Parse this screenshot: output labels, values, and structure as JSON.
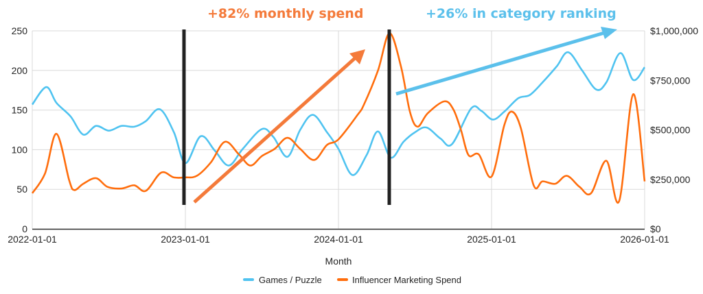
{
  "chart_data": {
    "type": "line",
    "title": "",
    "xlabel": "Month",
    "ylabel_left": "",
    "ylabel_right": "",
    "x_unit": "months since 2022-01-01",
    "x_ticks": [
      0,
      12,
      24,
      36,
      48
    ],
    "x_tick_labels": [
      "2022-01-01",
      "2023-01-01",
      "2024-01-01",
      "2025-01-01",
      "2026-01-01"
    ],
    "y_left": {
      "range": [
        0,
        250
      ],
      "ticks": [
        0,
        50,
        100,
        150,
        200,
        250
      ],
      "tick_labels": [
        "0",
        "50",
        "100",
        "150",
        "200",
        "250"
      ]
    },
    "y_right": {
      "range": [
        0,
        1000000
      ],
      "ticks": [
        0,
        250000,
        500000,
        750000,
        1000000
      ],
      "tick_labels": [
        "$0",
        "$250,000",
        "$500,000",
        "$750,000",
        "$1,000,000"
      ]
    },
    "grid": true,
    "legend_position": "bottom",
    "series": [
      {
        "name": "Games / Puzzle",
        "axis": "left",
        "color": "#4fc3f0",
        "points": [
          [
            0,
            157
          ],
          [
            1.1,
            179
          ],
          [
            1.9,
            159
          ],
          [
            3,
            142
          ],
          [
            4,
            119
          ],
          [
            5,
            130
          ],
          [
            6,
            124
          ],
          [
            7,
            130
          ],
          [
            8,
            129
          ],
          [
            8.9,
            136
          ],
          [
            10,
            151
          ],
          [
            11.1,
            122
          ],
          [
            12,
            83
          ],
          [
            13.2,
            117
          ],
          [
            14.3,
            99
          ],
          [
            15.4,
            80
          ],
          [
            16.5,
            101
          ],
          [
            18,
            126
          ],
          [
            18.9,
            116
          ],
          [
            20,
            91
          ],
          [
            21,
            125
          ],
          [
            22,
            144
          ],
          [
            23.1,
            122
          ],
          [
            24,
            101
          ],
          [
            25.1,
            68
          ],
          [
            26.2,
            93
          ],
          [
            27.1,
            123
          ],
          [
            28.1,
            90
          ],
          [
            29.1,
            110
          ],
          [
            30,
            122
          ],
          [
            30.9,
            128
          ],
          [
            32,
            114
          ],
          [
            32.9,
            107
          ],
          [
            34.4,
            152
          ],
          [
            35.2,
            149
          ],
          [
            36.1,
            138
          ],
          [
            37,
            148
          ],
          [
            38.1,
            165
          ],
          [
            39,
            169
          ],
          [
            40,
            185
          ],
          [
            41.1,
            205
          ],
          [
            42,
            223
          ],
          [
            43.1,
            200
          ],
          [
            44.2,
            176
          ],
          [
            45,
            185
          ],
          [
            46.1,
            222
          ],
          [
            47.1,
            188
          ],
          [
            48,
            204
          ]
        ]
      },
      {
        "name": "Influencer Marketing Spend",
        "axis": "right",
        "color": "#ff6d0c",
        "points": [
          [
            0,
            180000
          ],
          [
            1,
            280000
          ],
          [
            1.9,
            480000
          ],
          [
            2.9,
            244000
          ],
          [
            3.3,
            196000
          ],
          [
            4,
            228000
          ],
          [
            5,
            256000
          ],
          [
            5.9,
            212000
          ],
          [
            7,
            204000
          ],
          [
            8,
            220000
          ],
          [
            8.9,
            192000
          ],
          [
            10.1,
            284000
          ],
          [
            11.1,
            260000
          ],
          [
            12,
            260000
          ],
          [
            12.9,
            268000
          ],
          [
            14,
            336000
          ],
          [
            15.1,
            440000
          ],
          [
            16.2,
            376000
          ],
          [
            17.1,
            320000
          ],
          [
            18,
            368000
          ],
          [
            19,
            404000
          ],
          [
            20,
            460000
          ],
          [
            21,
            404000
          ],
          [
            22.1,
            348000
          ],
          [
            23.1,
            424000
          ],
          [
            24,
            452000
          ],
          [
            25.5,
            576000
          ],
          [
            26,
            628000
          ],
          [
            27.1,
            800000
          ],
          [
            28,
            988000
          ],
          [
            28.9,
            820000
          ],
          [
            29.6,
            592000
          ],
          [
            30.2,
            516000
          ],
          [
            31,
            584000
          ],
          [
            32.3,
            644000
          ],
          [
            33,
            604000
          ],
          [
            33.6,
            500000
          ],
          [
            34.2,
            372000
          ],
          [
            35,
            376000
          ],
          [
            36,
            264000
          ],
          [
            37,
            524000
          ],
          [
            37.6,
            592000
          ],
          [
            38.3,
            508000
          ],
          [
            39.3,
            220000
          ],
          [
            40,
            240000
          ],
          [
            41,
            228000
          ],
          [
            41.9,
            268000
          ],
          [
            42.9,
            212000
          ],
          [
            43.8,
            180000
          ],
          [
            45,
            344000
          ],
          [
            46,
            140000
          ],
          [
            47.1,
            680000
          ],
          [
            48,
            240000
          ]
        ]
      }
    ],
    "annotations": [
      {
        "text": "+82% monthly spend",
        "color": "#f47a3a"
      },
      {
        "text": "+26% in category ranking",
        "color": "#5bc0eb"
      }
    ]
  }
}
